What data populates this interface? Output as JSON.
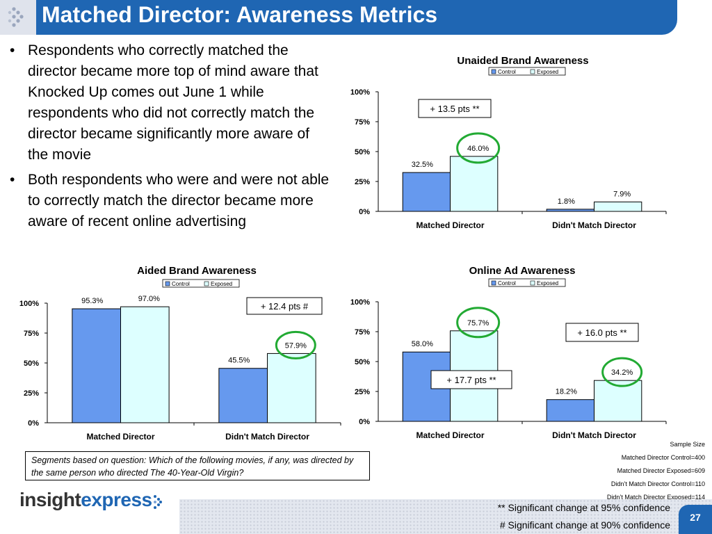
{
  "header": {
    "title": "Matched Director: Awareness Metrics"
  },
  "bullets": [
    "Respondents who correctly matched the director became more top of mind aware that Knocked Up comes out June 1 while respondents who did not correctly match the director became significantly more aware of the movie",
    "Both respondents who were and were not able to correctly match the director became more aware of recent online advertising"
  ],
  "colors": {
    "control": "#6699ee",
    "exposed": "#ddffff",
    "highlight_circle": "#22aa33",
    "header": "#1f66b3"
  },
  "chart_data": [
    {
      "type": "bar",
      "title": "Unaided Brand Awareness",
      "categories": [
        "Matched Director",
        "Didn't Match Director"
      ],
      "series": [
        {
          "name": "Control",
          "values": [
            32.5,
            1.8
          ]
        },
        {
          "name": "Exposed",
          "values": [
            46.0,
            7.9
          ]
        }
      ],
      "labels": [
        [
          "32.5%",
          "1.8%"
        ],
        [
          "46.0%",
          "7.9%"
        ]
      ],
      "ylim": [
        0,
        100
      ],
      "yticks": [
        "0%",
        "25%",
        "50%",
        "75%",
        "100%"
      ],
      "legend": "top",
      "callouts": [
        "+ 13.5 pts **"
      ],
      "circled": [
        "Exposed, Matched Director"
      ]
    },
    {
      "type": "bar",
      "title": "Aided Brand Awareness",
      "categories": [
        "Matched Director",
        "Didn't Match Director"
      ],
      "series": [
        {
          "name": "Control",
          "values": [
            95.3,
            45.5
          ]
        },
        {
          "name": "Exposed",
          "values": [
            97.0,
            57.9
          ]
        }
      ],
      "labels": [
        [
          "95.3%",
          "45.5%"
        ],
        [
          "97.0%",
          "57.9%"
        ]
      ],
      "ylim": [
        0,
        100
      ],
      "yticks": [
        "0%",
        "25%",
        "50%",
        "75%",
        "100%"
      ],
      "legend": "top",
      "callouts": [
        "+ 12.4 pts #"
      ],
      "circled": [
        "Exposed, Didn't Match Director"
      ]
    },
    {
      "type": "bar",
      "title": "Online Ad Awareness",
      "categories": [
        "Matched Director",
        "Didn't Match Director"
      ],
      "series": [
        {
          "name": "Control",
          "values": [
            58.0,
            18.2
          ]
        },
        {
          "name": "Exposed",
          "values": [
            75.7,
            34.2
          ]
        }
      ],
      "labels": [
        [
          "58.0%",
          "18.2%"
        ],
        [
          "75.7%",
          "34.2%"
        ]
      ],
      "ylim": [
        0,
        100
      ],
      "yticks": [
        "0%",
        "25%",
        "50%",
        "75%",
        "100%"
      ],
      "legend": "top",
      "callouts": [
        "+ 16.0 pts **",
        "+ 17.7 pts **"
      ],
      "circled": [
        "Exposed, Matched Director",
        "Exposed, Didn't Match Director"
      ]
    }
  ],
  "note": "Segments based on question: Which of the following movies, if any, was directed by the same person who directed The 40-Year-Old Virgin?",
  "sample_size": {
    "title": "Sample Size",
    "lines": [
      "Matched Director Control=400",
      "Matched Director Exposed=609",
      "Didn’t Match Director Control=110",
      "Didn’t Match Director Exposed=114"
    ]
  },
  "footer": {
    "logo_part1": "insight",
    "logo_part2": "express",
    "sig95": "** Significant change at 95% confidence",
    "sig90": "# Significant change at 90% confidence",
    "page_number": "27"
  }
}
